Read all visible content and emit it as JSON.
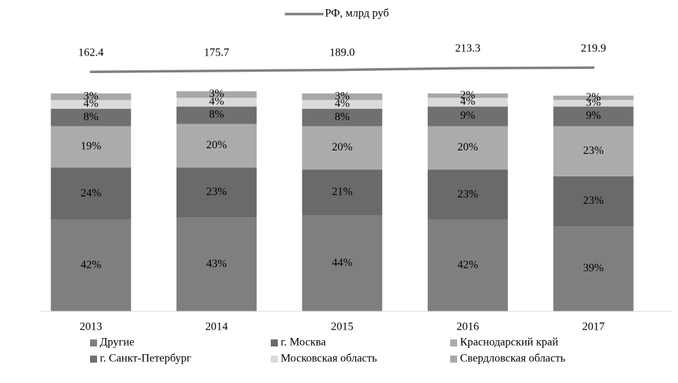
{
  "chart_data": {
    "type": "bar",
    "stacked": true,
    "categories": [
      "2013",
      "2014",
      "2015",
      "2016",
      "2017"
    ],
    "ylim": [
      0,
      100
    ],
    "y2lim": [
      -200,
      760
    ],
    "legend": "bottom",
    "series": [
      {
        "name": "Другие",
        "color": "#7f7f7f",
        "values": [
          42,
          43,
          44,
          42,
          39
        ],
        "value_labels": [
          "42%",
          "43%",
          "44%",
          "42%",
          "39%"
        ]
      },
      {
        "name": "г. Москва",
        "color": "#6a6a6a",
        "values": [
          24,
          23,
          21,
          23,
          23
        ],
        "value_labels": [
          "24%",
          "23%",
          "21%",
          "23%",
          "23%"
        ]
      },
      {
        "name": "Краснодарский край",
        "color": "#ababab",
        "values": [
          19,
          20,
          20,
          20,
          23
        ],
        "value_labels": [
          "19%",
          "20%",
          "20%",
          "20%",
          "23%"
        ]
      },
      {
        "name": "г. Санкт-Петербург",
        "color": "#707070",
        "values": [
          8,
          8,
          8,
          9,
          9
        ],
        "value_labels": [
          "8%",
          "8%",
          "8%",
          "9%",
          "9%"
        ]
      },
      {
        "name": "Московская область",
        "color": "#dadada",
        "values": [
          4,
          4,
          4,
          4,
          3
        ],
        "value_labels": [
          "4%",
          "4%",
          "4%",
          "4%",
          "3%"
        ]
      },
      {
        "name": "Свердловская область",
        "color": "#a8a8a8",
        "values": [
          3,
          3,
          3,
          2,
          2
        ],
        "value_labels": [
          "3%",
          "3%",
          "3%",
          "2%",
          "2%"
        ]
      },
      {
        "name": "РФ, млрд руб",
        "type": "line",
        "axis": "y2",
        "color": "#7f7f7f",
        "values": [
          162.4,
          175.7,
          189.0,
          213.3,
          219.9
        ],
        "value_labels": [
          "162.4",
          "175.7",
          "189.0",
          "213.3",
          "219.9"
        ]
      }
    ]
  }
}
